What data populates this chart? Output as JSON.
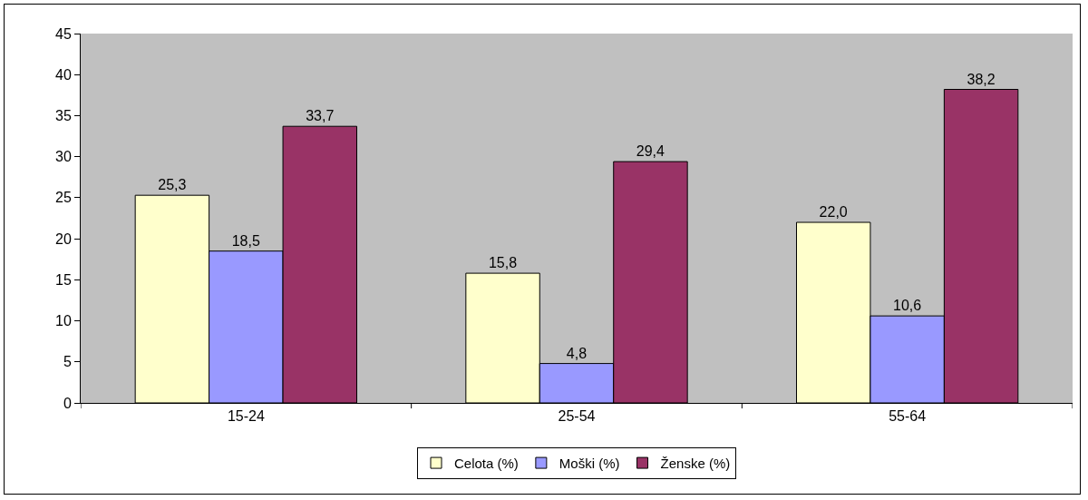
{
  "chart_data": {
    "type": "bar",
    "categories": [
      "15-24",
      "25-54",
      "55-64"
    ],
    "series": [
      {
        "name": "Celota (%)",
        "color": "#ffffcc",
        "values": [
          25.3,
          15.8,
          22.0
        ],
        "value_labels": [
          "25,3",
          "15,8",
          "22,0"
        ]
      },
      {
        "name": "Moški (%)",
        "color": "#9999ff",
        "values": [
          18.5,
          4.8,
          10.6
        ],
        "value_labels": [
          "18,5",
          "4,8",
          "10,6"
        ]
      },
      {
        "name": "Ženske (%)",
        "color": "#993366",
        "values": [
          33.7,
          29.4,
          38.2
        ],
        "value_labels": [
          "33,7",
          "29,4",
          "38,2"
        ]
      }
    ],
    "ylim": [
      0,
      45
    ],
    "yticks": [
      0,
      5,
      10,
      15,
      20,
      25,
      30,
      35,
      40,
      45
    ],
    "grid": false,
    "legend": "bottom"
  }
}
